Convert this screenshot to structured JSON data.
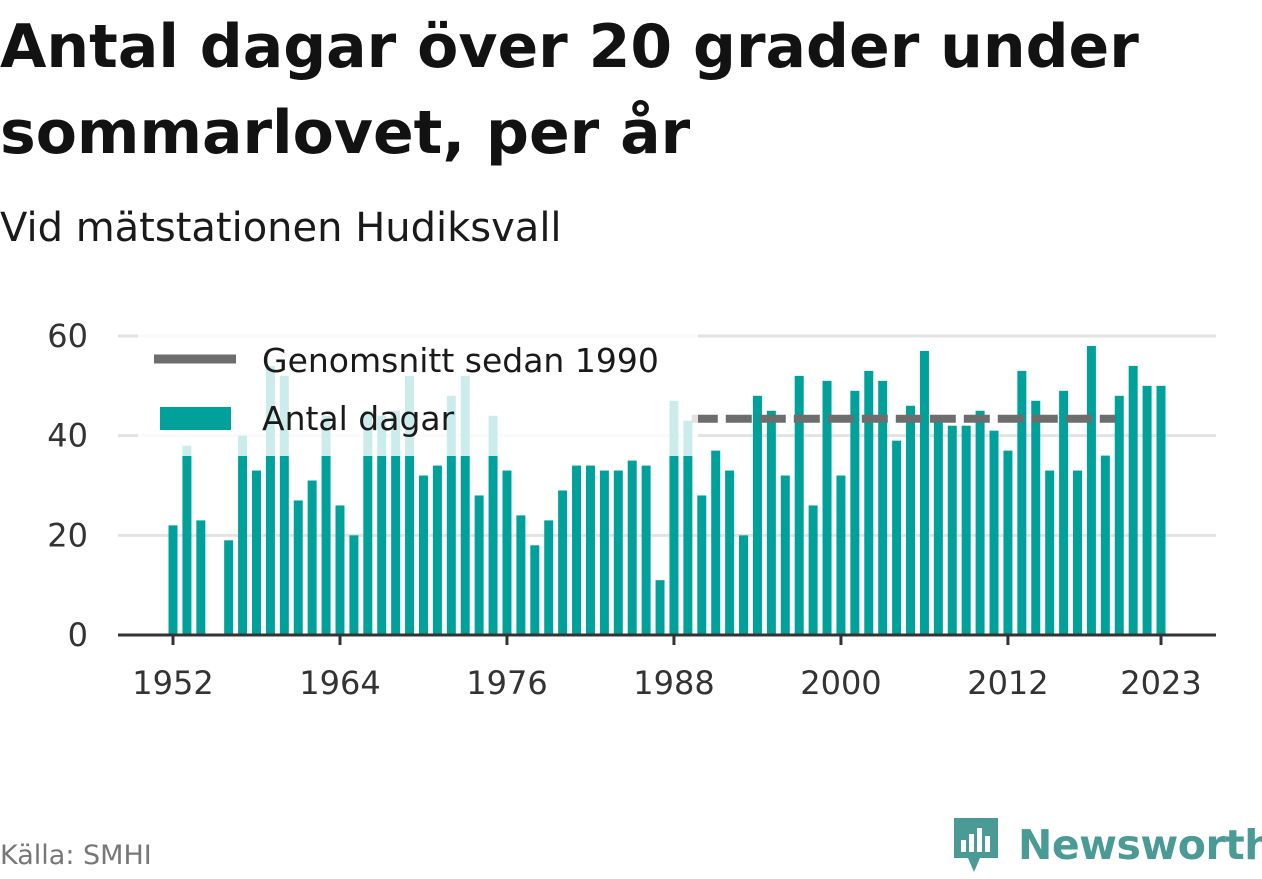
{
  "chart_data": {
    "type": "bar",
    "title": "Antal dagar över 20 grader under sommarlovet, per år",
    "subtitle": "Vid mätstationen Hudiksvall",
    "source": "Källa: SMHI",
    "brand": "Newsworthy",
    "xlabel": "",
    "ylabel": "",
    "ylim": [
      0,
      60
    ],
    "yticks": [
      0,
      20,
      40,
      60
    ],
    "xticks": [
      1952,
      1964,
      1976,
      1988,
      2000,
      2012,
      2023
    ],
    "grid": true,
    "legend_placement": "top-left",
    "series": [
      {
        "name": "Antal dagar",
        "color": "#00a19a",
        "x": [
          1952,
          1953,
          1954,
          1955,
          1956,
          1957,
          1958,
          1959,
          1960,
          1961,
          1962,
          1963,
          1964,
          1965,
          1966,
          1967,
          1968,
          1969,
          1970,
          1971,
          1972,
          1973,
          1974,
          1975,
          1976,
          1977,
          1978,
          1979,
          1980,
          1981,
          1982,
          1983,
          1984,
          1985,
          1986,
          1987,
          1988,
          1989,
          1990,
          1991,
          1992,
          1993,
          1994,
          1995,
          1996,
          1997,
          1998,
          1999,
          2000,
          2001,
          2002,
          2003,
          2004,
          2005,
          2006,
          2007,
          2008,
          2009,
          2010,
          2011,
          2012,
          2013,
          2014,
          2015,
          2016,
          2017,
          2018,
          2019,
          2020,
          2021,
          2022,
          2023
        ],
        "values": [
          22,
          38,
          23,
          null,
          19,
          40,
          33,
          54,
          52,
          27,
          31,
          44,
          26,
          20,
          45,
          44,
          45,
          52,
          32,
          34,
          48,
          52,
          28,
          44,
          33,
          24,
          18,
          23,
          29,
          34,
          34,
          33,
          33,
          35,
          34,
          11,
          47,
          43,
          28,
          37,
          33,
          20,
          48,
          45,
          32,
          52,
          26,
          51,
          32,
          49,
          53,
          51,
          39,
          46,
          57,
          44,
          42,
          42,
          45,
          41,
          37,
          53,
          47,
          33,
          49,
          33,
          58,
          36,
          48,
          54,
          50,
          50
        ]
      },
      {
        "name": "Genomsnitt sedan 1990",
        "color": "#6d6d6d",
        "type": "line",
        "dashed": true,
        "x": [
          1990,
          2019
        ],
        "values": [
          43.4,
          43.4
        ]
      }
    ]
  }
}
